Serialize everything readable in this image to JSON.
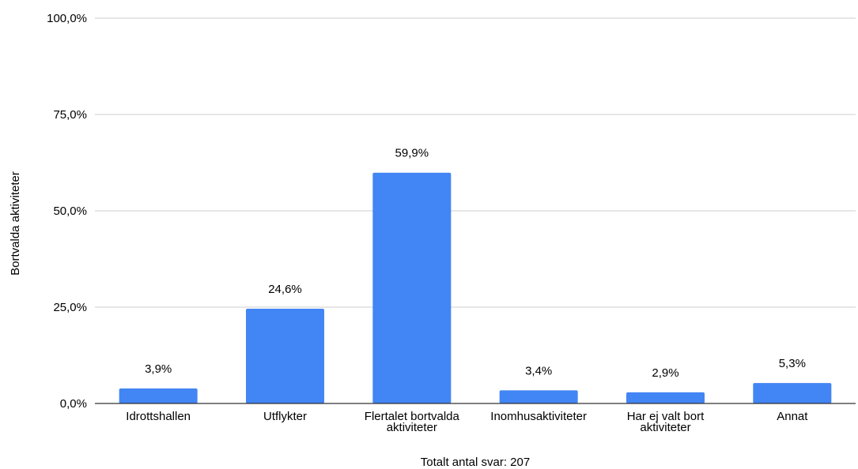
{
  "chart_data": {
    "type": "bar",
    "categories": [
      [
        "Idrottshallen"
      ],
      [
        "Utflykter"
      ],
      [
        "Flertalet bortvalda",
        "aktiviteter"
      ],
      [
        "Inomhusaktiviteter"
      ],
      [
        "Har ej valt bort",
        "aktiviteter"
      ],
      [
        "Annat"
      ]
    ],
    "values": [
      3.9,
      24.6,
      59.9,
      3.4,
      2.9,
      5.3
    ],
    "value_labels": [
      "3,9%",
      "24,6%",
      "59,9%",
      "3,4%",
      "2,9%",
      "5,3%"
    ],
    "title": "",
    "xlabel": "Totalt antal svar: 207",
    "ylabel": "Bortvalda aktiviteter",
    "ylim": [
      0,
      100
    ],
    "yticks": [
      0,
      25,
      50,
      75,
      100
    ],
    "ytick_labels": [
      "0,0%",
      "25,0%",
      "50,0%",
      "75,0%",
      "100,0%"
    ],
    "grid": true,
    "legend": "none",
    "bar_color": "#4285f4"
  }
}
